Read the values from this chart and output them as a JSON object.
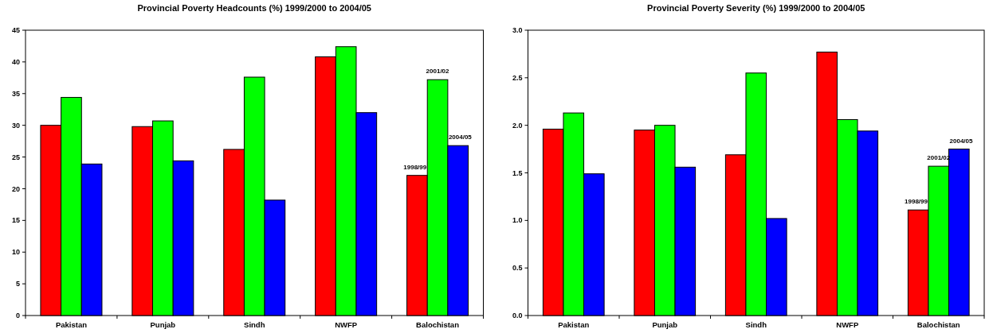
{
  "chart_data": [
    {
      "type": "bar",
      "title": "Provincial Poverty Headcounts (%) 1999/2000 to 2004/05",
      "categories": [
        "Pakistan",
        "Punjab",
        "Sindh",
        "NWFP",
        "Balochistan"
      ],
      "series": [
        {
          "name": "1998/99",
          "color": "#ff0000",
          "values": [
            30.0,
            29.8,
            26.2,
            40.8,
            22.1
          ]
        },
        {
          "name": "2001/02",
          "color": "#00ff00",
          "values": [
            34.4,
            30.7,
            37.6,
            42.4,
            37.2
          ]
        },
        {
          "name": "2004/05",
          "color": "#0000ff",
          "values": [
            23.9,
            24.4,
            18.2,
            32.0,
            26.8
          ]
        }
      ],
      "ylim": [
        0,
        45
      ],
      "yticks": [
        0,
        5,
        10,
        15,
        20,
        25,
        30,
        35,
        40,
        45
      ],
      "grid": false
    },
    {
      "type": "bar",
      "title": "Provincial Poverty Severity (%) 1999/2000 to 2004/05",
      "categories": [
        "Pakistan",
        "Punjab",
        "Sindh",
        "NWFP",
        "Balochistan"
      ],
      "series": [
        {
          "name": "1998/99",
          "color": "#ff0000",
          "values": [
            1.96,
            1.95,
            1.69,
            2.77,
            1.11
          ]
        },
        {
          "name": "2001/02",
          "color": "#00ff00",
          "values": [
            2.13,
            2.0,
            2.55,
            2.06,
            1.57
          ]
        },
        {
          "name": "2004/05",
          "color": "#0000ff",
          "values": [
            1.49,
            1.56,
            1.02,
            1.94,
            1.75
          ]
        }
      ],
      "ylim": [
        0,
        3
      ],
      "yticks": [
        {
          "value": 0,
          "label": "0.0"
        },
        {
          "value": 0.5,
          "label": "0.5"
        },
        {
          "value": 1,
          "label": "1.0"
        },
        {
          "value": 1.5,
          "label": "1.5"
        },
        {
          "value": 2,
          "label": "2.0"
        },
        {
          "value": 2.5,
          "label": "2.5"
        },
        {
          "value": 3,
          "label": "3.0"
        }
      ],
      "grid": false
    }
  ]
}
